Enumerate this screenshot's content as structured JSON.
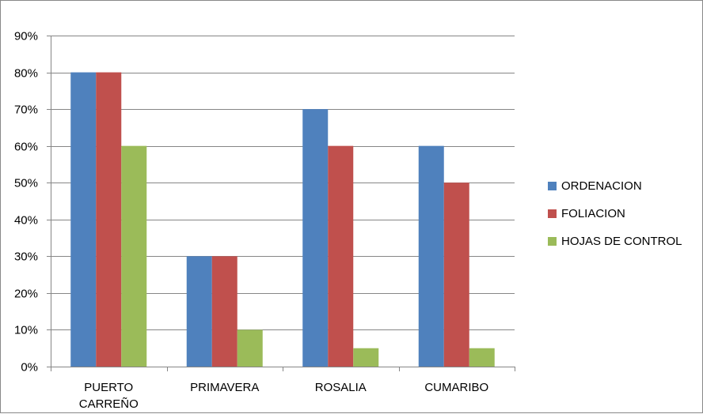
{
  "chart_data": {
    "type": "bar",
    "categories": [
      [
        "PUERTO",
        "CARREÑO"
      ],
      [
        "PRIMAVERA"
      ],
      [
        "ROSALIA"
      ],
      [
        "CUMARIBO"
      ]
    ],
    "series": [
      {
        "name": "ORDENACION",
        "color": "#4F81BD",
        "values": [
          0.8,
          0.3,
          0.7,
          0.6
        ]
      },
      {
        "name": "FOLIACION",
        "color": "#C0504D",
        "values": [
          0.8,
          0.3,
          0.6,
          0.5
        ]
      },
      {
        "name": "HOJAS DE CONTROL",
        "color": "#9BBB59",
        "values": [
          0.6,
          0.1,
          0.05,
          0.05
        ]
      }
    ],
    "y_ticks": [
      "0%",
      "10%",
      "20%",
      "30%",
      "40%",
      "50%",
      "60%",
      "70%",
      "80%",
      "90%"
    ],
    "ylim": [
      0,
      0.9
    ],
    "grid": true,
    "gridline_color": "#868686",
    "legend_position": "right"
  }
}
